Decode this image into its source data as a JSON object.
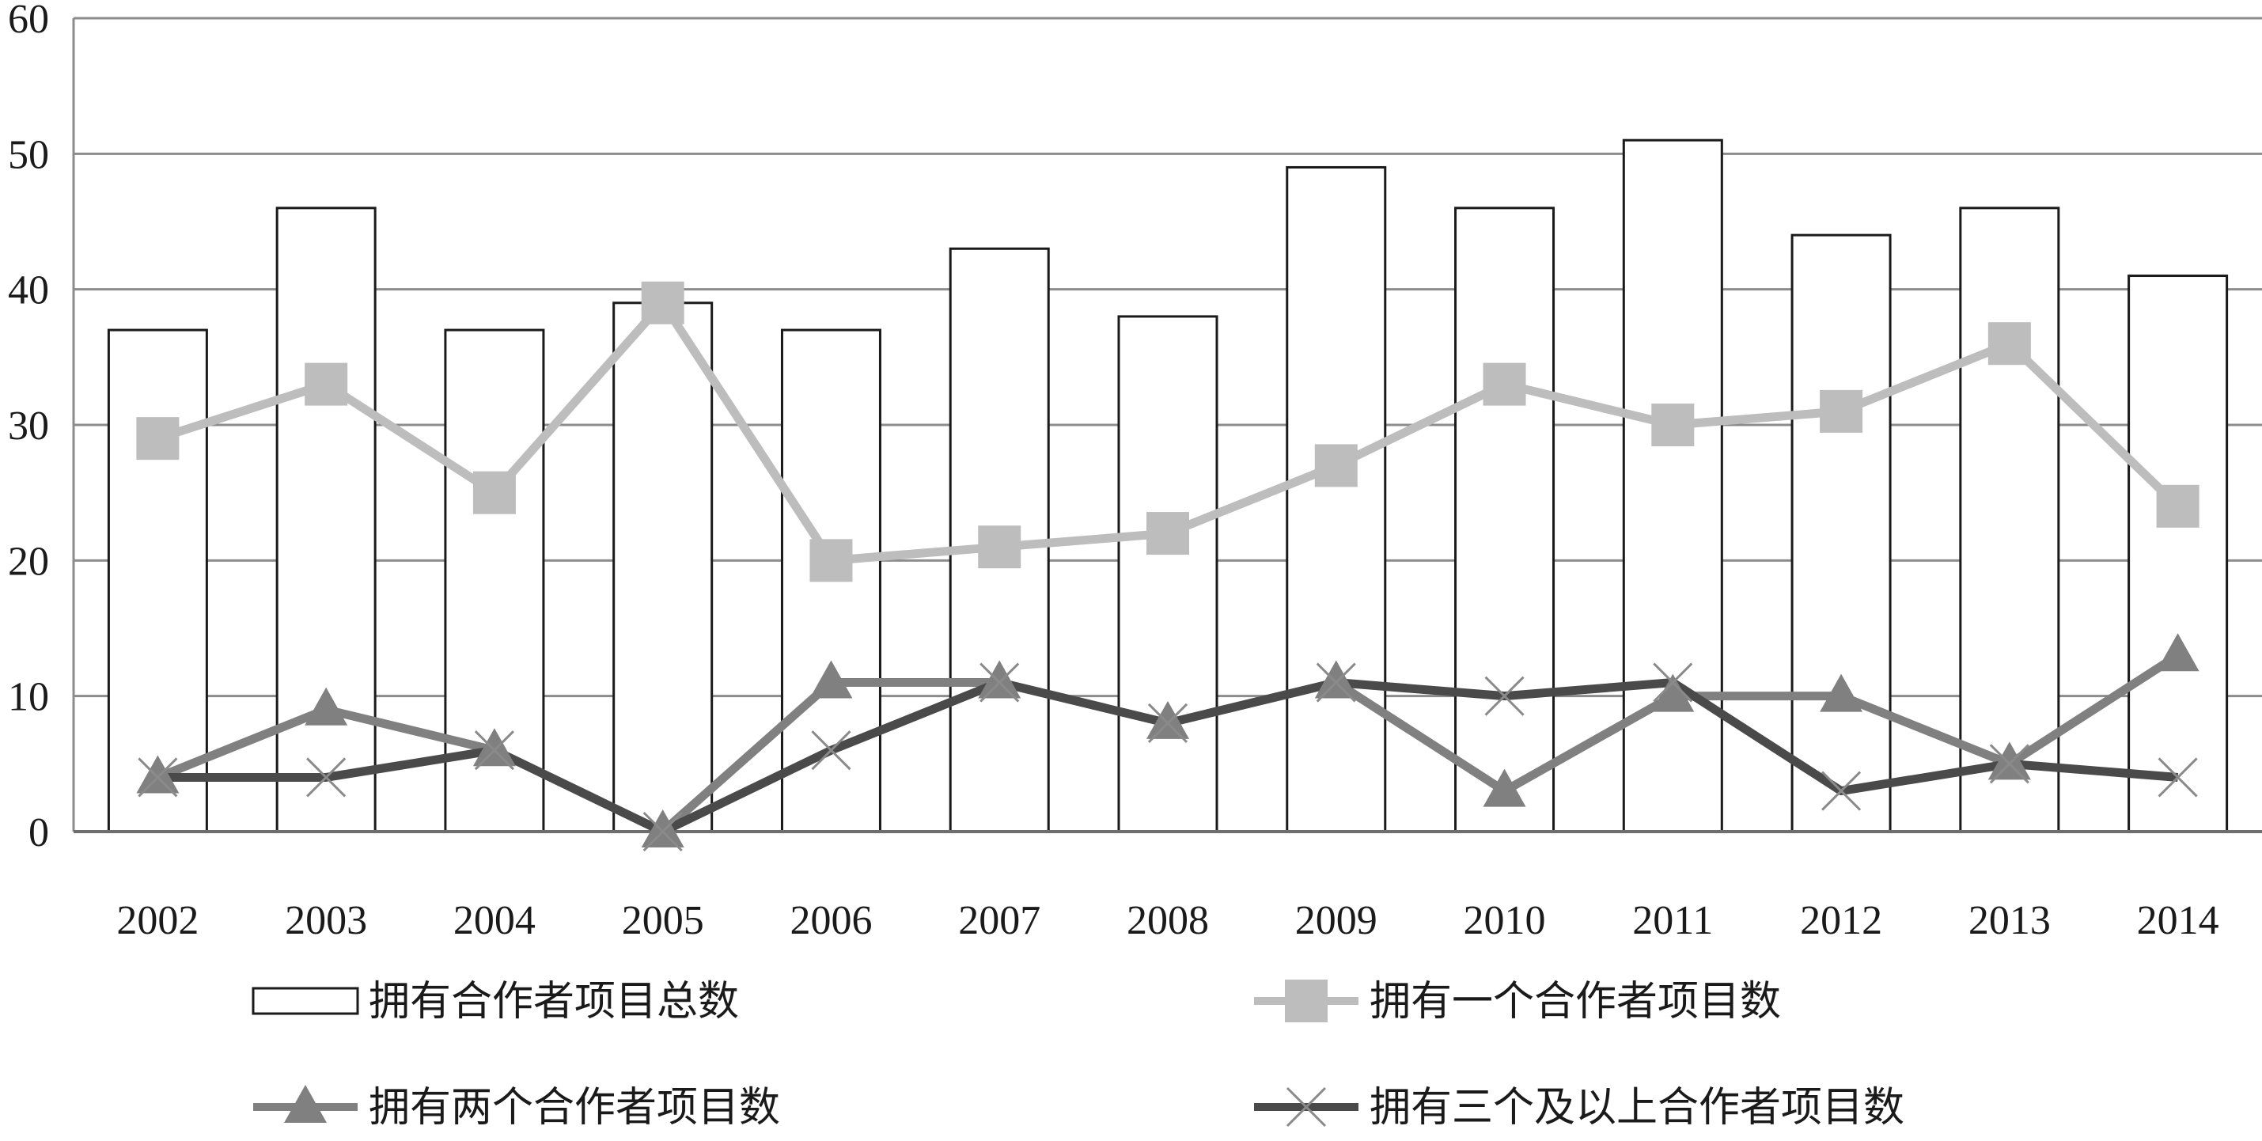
{
  "chart_data": {
    "type": "bar",
    "title": "",
    "xlabel": "",
    "ylabel": "",
    "categories": [
      "2002",
      "2003",
      "2004",
      "2005",
      "2006",
      "2007",
      "2008",
      "2009",
      "2010",
      "2011",
      "2012",
      "2013",
      "2014"
    ],
    "ylim": [
      0,
      60
    ],
    "yticks": [
      0,
      10,
      20,
      30,
      40,
      50,
      60
    ],
    "grid": true,
    "legend_position": "bottom",
    "series": [
      {
        "name": "拥有合作者项目总数",
        "kind": "bar",
        "marker": "none",
        "color": "#ffffff",
        "stroke": "#1a1a1a",
        "values": [
          37,
          46,
          37,
          39,
          37,
          43,
          38,
          49,
          46,
          51,
          44,
          46,
          41
        ]
      },
      {
        "name": "拥有一个合作者项目数",
        "kind": "line",
        "marker": "square",
        "color": "#bdbdbd",
        "values": [
          29,
          33,
          25,
          39,
          20,
          21,
          22,
          27,
          33,
          30,
          31,
          36,
          24
        ]
      },
      {
        "name": "拥有两个合作者项目数",
        "kind": "line",
        "marker": "triangle",
        "color": "#808080",
        "values": [
          4,
          9,
          6,
          0,
          11,
          11,
          8,
          11,
          3,
          10,
          10,
          5,
          13
        ]
      },
      {
        "name": "拥有三个及以上合作者项目数",
        "kind": "line",
        "marker": "cross",
        "color": "#4a4a4a",
        "values": [
          4,
          4,
          6,
          0,
          6,
          11,
          8,
          11,
          10,
          11,
          3,
          5,
          4
        ]
      }
    ]
  }
}
